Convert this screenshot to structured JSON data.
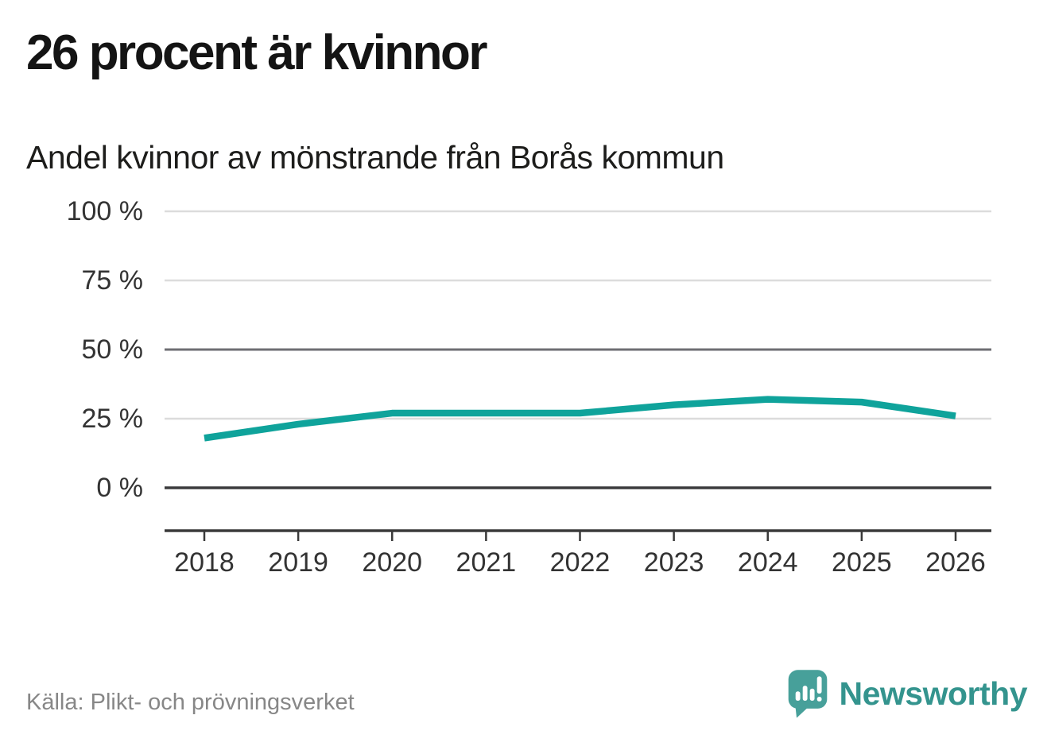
{
  "header": {
    "title": "26 procent är kvinnor",
    "subtitle": "Andel kvinnor av mönstrande från Borås kommun"
  },
  "chart_data": {
    "type": "line",
    "x": [
      2018,
      2019,
      2020,
      2021,
      2022,
      2023,
      2024,
      2025,
      2026
    ],
    "x_labels": [
      "2018",
      "2019",
      "2020",
      "2021",
      "2022",
      "2023",
      "2024",
      "2025",
      "2026"
    ],
    "series": [
      {
        "name": "Andel kvinnor av mönstrande",
        "values": [
          18,
          23,
          27,
          27,
          27,
          30,
          32,
          31,
          26
        ]
      }
    ],
    "title": "26 procent är kvinnor",
    "subtitle": "Andel kvinnor av mönstrande från Borås kommun",
    "xlabel": "",
    "ylabel": "",
    "ylim": [
      0,
      100
    ],
    "yticks": [
      0,
      25,
      50,
      75,
      100
    ],
    "ytick_labels": [
      "0 %",
      "25 %",
      "50 %",
      "75 %",
      "100 %"
    ],
    "grid": true,
    "legend": "none",
    "unit": "%"
  },
  "footer": {
    "source": "Källa: Plikt- och prövningsverket",
    "brand": "Newsworthy"
  },
  "colors": {
    "accent_line": "#0fa39b",
    "grid_light": "#dcdcdc",
    "grid_mid": "#6e6e73",
    "grid_zero": "#3c3c3e",
    "axis": "#3a3a3a",
    "tick_text": "#333333",
    "title_text": "#141414",
    "muted_text": "#878787",
    "brand_teal_icon": "#47a09a",
    "brand_teal_text": "#34948e"
  }
}
